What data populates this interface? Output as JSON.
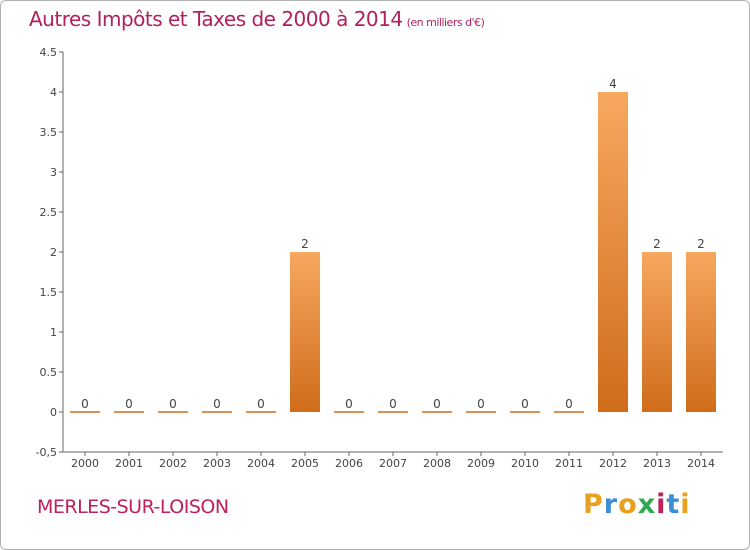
{
  "title": "Autres Impôts et Taxes de 2000 à 2014",
  "subtitle": "(en milliers d'€)",
  "commune": "MERLES-SUR-LOISON",
  "brand": {
    "letters": [
      "P",
      "r",
      "o",
      "x",
      "i",
      "t",
      "i"
    ],
    "colors": [
      "#e8a020",
      "#3a8fd6",
      "#e8a020",
      "#2fa84f",
      "#c0205c",
      "#3a8fd6",
      "#e8a020"
    ]
  },
  "colors": {
    "title": "#b0215e",
    "bar_light": "#f6a860",
    "bar_dark": "#d06c1a",
    "axis": "#666666",
    "grid_tick": "#666666"
  },
  "chart_data": {
    "type": "bar",
    "categories": [
      "2000",
      "2001",
      "2002",
      "2003",
      "2004",
      "2005",
      "2006",
      "2007",
      "2008",
      "2009",
      "2010",
      "2011",
      "2012",
      "2013",
      "2014"
    ],
    "values": [
      0,
      0,
      0,
      0,
      0,
      2,
      0,
      0,
      0,
      0,
      0,
      0,
      4,
      2,
      2
    ],
    "data_labels": [
      "0",
      "0",
      "0",
      "0",
      "0",
      "2",
      "0",
      "0",
      "0",
      "0",
      "0",
      "0",
      "4",
      "2",
      "2"
    ],
    "ylim": [
      -0.5,
      4.5
    ],
    "yticks": [
      "-0,5",
      "0",
      "0.5",
      "1",
      "1.5",
      "2",
      "2.5",
      "3",
      "3.5",
      "4",
      "4.5"
    ],
    "ytick_values": [
      -0.5,
      0,
      0.5,
      1,
      1.5,
      2,
      2.5,
      3,
      3.5,
      4,
      4.5
    ],
    "grid": false,
    "xlabel": "",
    "ylabel": ""
  }
}
